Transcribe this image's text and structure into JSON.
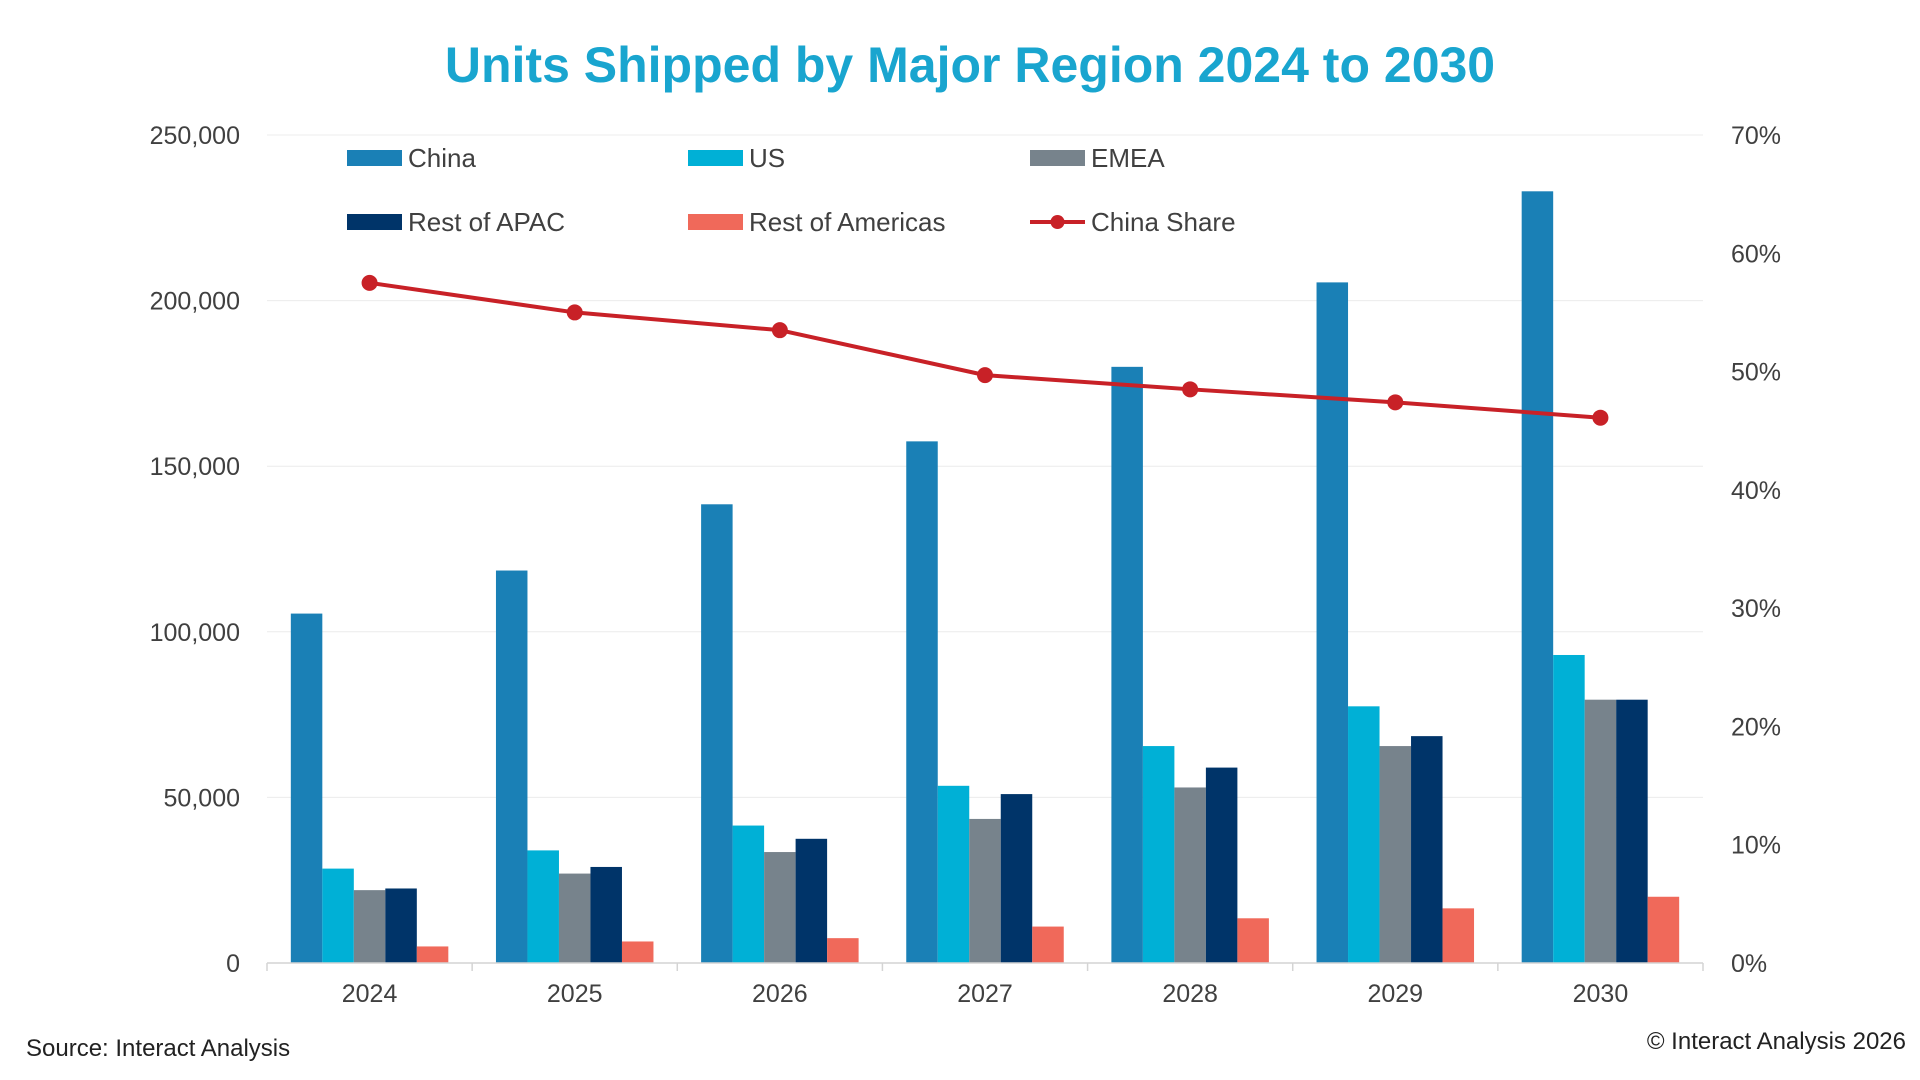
{
  "chart_data": {
    "type": "bar",
    "title": "Units Shipped by Major Region 2024 to 2030",
    "categories": [
      "2024",
      "2025",
      "2026",
      "2027",
      "2028",
      "2029",
      "2030"
    ],
    "series": [
      {
        "name": "China",
        "type": "bar",
        "axis": "left",
        "color": "#1a80b6",
        "values": [
          105500,
          118500,
          138500,
          157500,
          180000,
          205500,
          233000
        ]
      },
      {
        "name": "US",
        "type": "bar",
        "axis": "left",
        "color": "#00b0d6",
        "values": [
          28500,
          34000,
          41500,
          53500,
          65500,
          77500,
          93000
        ]
      },
      {
        "name": "EMEA",
        "type": "bar",
        "axis": "left",
        "color": "#77838c",
        "values": [
          22000,
          27000,
          33500,
          43500,
          53000,
          65500,
          79500
        ]
      },
      {
        "name": "Rest of APAC",
        "type": "bar",
        "axis": "left",
        "color": "#003469",
        "values": [
          22500,
          29000,
          37500,
          51000,
          59000,
          68500,
          79500
        ]
      },
      {
        "name": "Rest of Americas",
        "type": "bar",
        "axis": "left",
        "color": "#f0695a",
        "values": [
          5000,
          6500,
          7500,
          11000,
          13500,
          16500,
          20000
        ]
      },
      {
        "name": "China Share",
        "type": "line",
        "axis": "right",
        "color": "#c82127",
        "values": [
          0.575,
          0.55,
          0.535,
          0.497,
          0.485,
          0.474,
          0.461
        ]
      }
    ],
    "y_left": {
      "min": 0,
      "max": 250000,
      "ticks": [
        0,
        50000,
        100000,
        150000,
        200000,
        250000
      ],
      "tick_labels": [
        "0",
        "50,000",
        "100,000",
        "150,000",
        "200,000",
        "250,000"
      ]
    },
    "y_right": {
      "min": 0,
      "max": 0.7,
      "ticks": [
        0,
        0.1,
        0.2,
        0.3,
        0.4,
        0.5,
        0.6,
        0.7
      ],
      "tick_labels": [
        "0%",
        "10%",
        "20%",
        "30%",
        "40%",
        "50%",
        "60%",
        "70%"
      ]
    },
    "xlabel": "",
    "ylabel": "",
    "grid": true,
    "legend_position": "top-left inside plot, 3 columns"
  },
  "footer": {
    "source": "Source: Interact Analysis",
    "copyright": "© Interact Analysis 2026"
  }
}
